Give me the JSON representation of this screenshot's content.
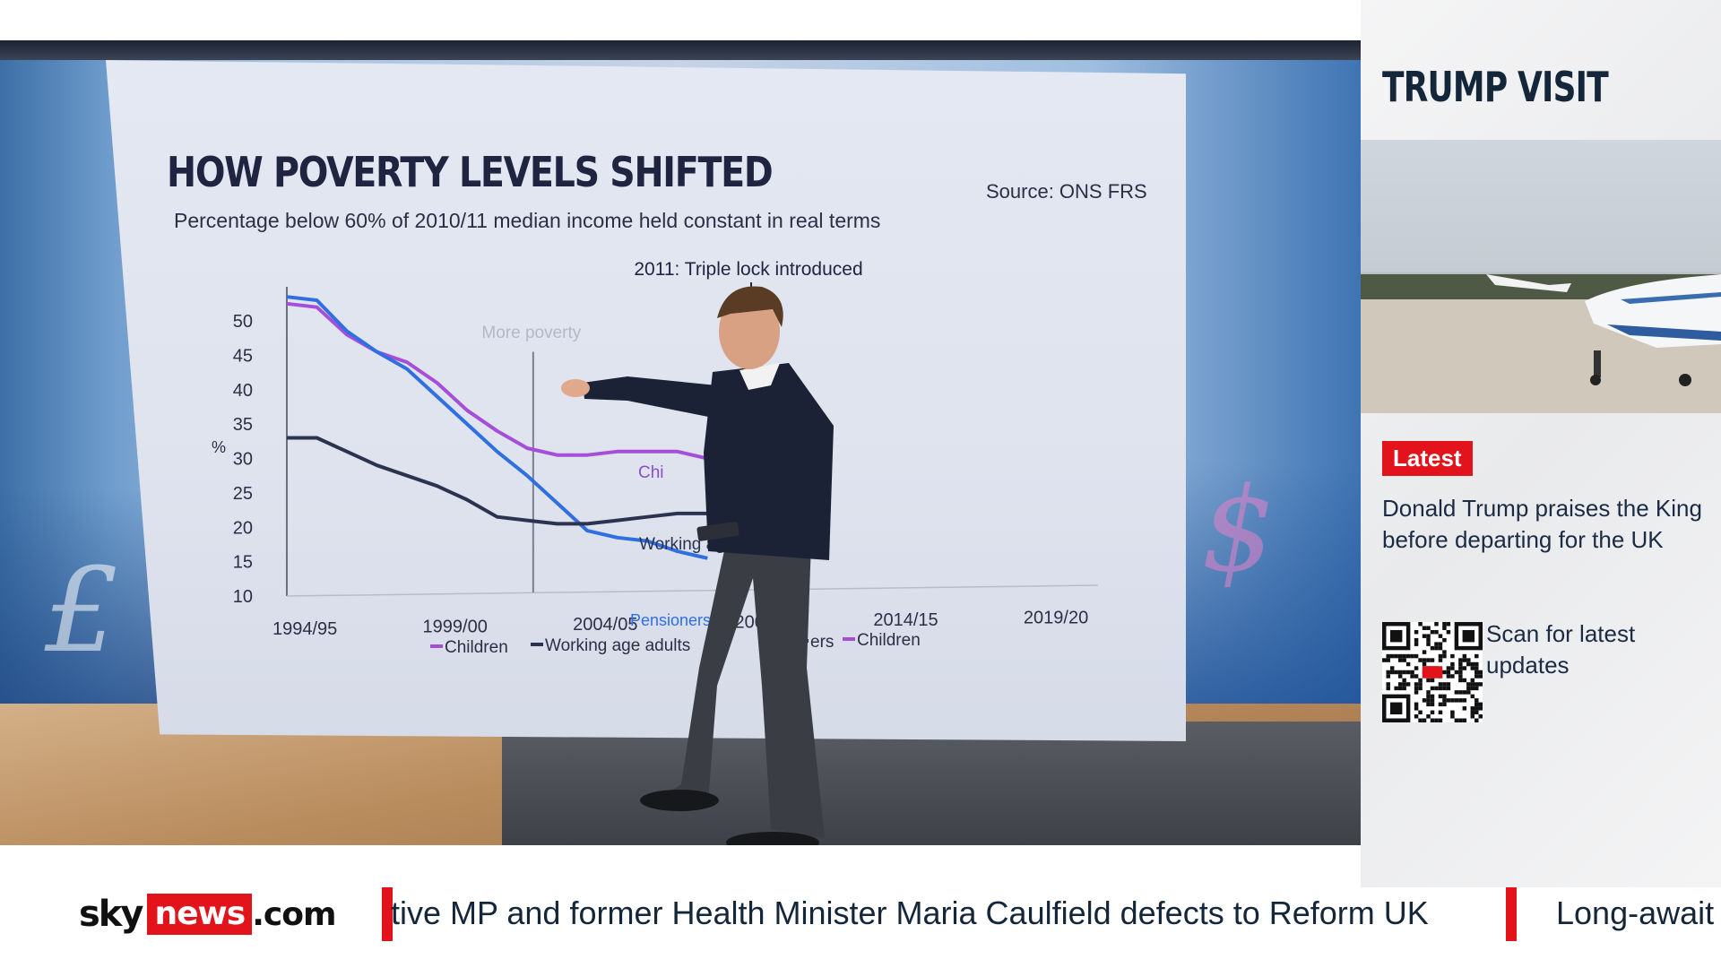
{
  "panel": {
    "title": "TRUMP VISIT",
    "badge": "Latest",
    "headline": "Donald Trump praises the King before departing for the UK",
    "scan_text": "Scan for latest updates"
  },
  "ticker": {
    "logo_sky": "sky",
    "logo_news": "news",
    "logo_com": ".com",
    "text_1": "tive MP and former Health Minister Maria Caulfield defects to Reform UK",
    "text_2": "Long-await"
  },
  "screen_chart": {
    "title": "HOW POVERTY LEVELS SHIFTED",
    "subtitle": "Percentage below 60% of 2010/11 median income held constant in real terms",
    "source": "Source: ONS FRS",
    "annotation": "2011: Triple lock introduced",
    "ylabel": "%",
    "y_ticks": [
      "50",
      "45",
      "40",
      "35",
      "30",
      "25",
      "20",
      "15",
      "10"
    ],
    "x_ticks": [
      "1994/95",
      "1999/00",
      "2004/05",
      "200",
      "2014/15",
      "2019/20"
    ],
    "more_poverty_label": "More poverty",
    "inline_labels": {
      "children": "Chi",
      "working_age": "Working ag",
      "pensioners": "Pensioners"
    },
    "legend": [
      "Children",
      "Working age adults",
      "ers",
      "Children"
    ],
    "colors": {
      "children": "#a54fd8",
      "working_age": "#2f6fe0",
      "pensioners": "#2c3350"
    },
    "series": [
      {
        "name": "Children",
        "points": [
          [
            1994,
            52.5
          ],
          [
            1995,
            52
          ],
          [
            1996,
            48
          ],
          [
            1997,
            45.5
          ],
          [
            1998,
            44
          ],
          [
            1999,
            41
          ],
          [
            2000,
            37
          ],
          [
            2001,
            34
          ],
          [
            2002,
            31.5
          ],
          [
            2003,
            30.5
          ],
          [
            2004,
            30.5
          ],
          [
            2005,
            31
          ],
          [
            2006,
            31
          ],
          [
            2007,
            31
          ],
          [
            2008,
            30
          ]
        ]
      },
      {
        "name": "Working age adults",
        "points": [
          [
            1994,
            53.5
          ],
          [
            1995,
            53
          ],
          [
            1996,
            48.5
          ],
          [
            1997,
            45.5
          ],
          [
            1998,
            43
          ],
          [
            1999,
            39
          ],
          [
            2000,
            35
          ],
          [
            2001,
            31
          ],
          [
            2002,
            27.5
          ],
          [
            2003,
            23.5
          ],
          [
            2004,
            19.5
          ],
          [
            2005,
            18.5
          ],
          [
            2006,
            18
          ],
          [
            2007,
            16.5
          ],
          [
            2008,
            15.5
          ]
        ]
      },
      {
        "name": "Pensioners",
        "points": [
          [
            1994,
            33
          ],
          [
            1995,
            33
          ],
          [
            1996,
            31
          ],
          [
            1997,
            29
          ],
          [
            1998,
            27.5
          ],
          [
            1999,
            26
          ],
          [
            2000,
            24
          ],
          [
            2001,
            21.5
          ],
          [
            2002,
            21
          ],
          [
            2003,
            20.5
          ],
          [
            2004,
            20.5
          ],
          [
            2005,
            21
          ],
          [
            2006,
            21.5
          ],
          [
            2007,
            22
          ],
          [
            2008,
            22
          ]
        ]
      }
    ],
    "xlim": [
      1994,
      2021
    ],
    "ylim": [
      10,
      53
    ]
  }
}
